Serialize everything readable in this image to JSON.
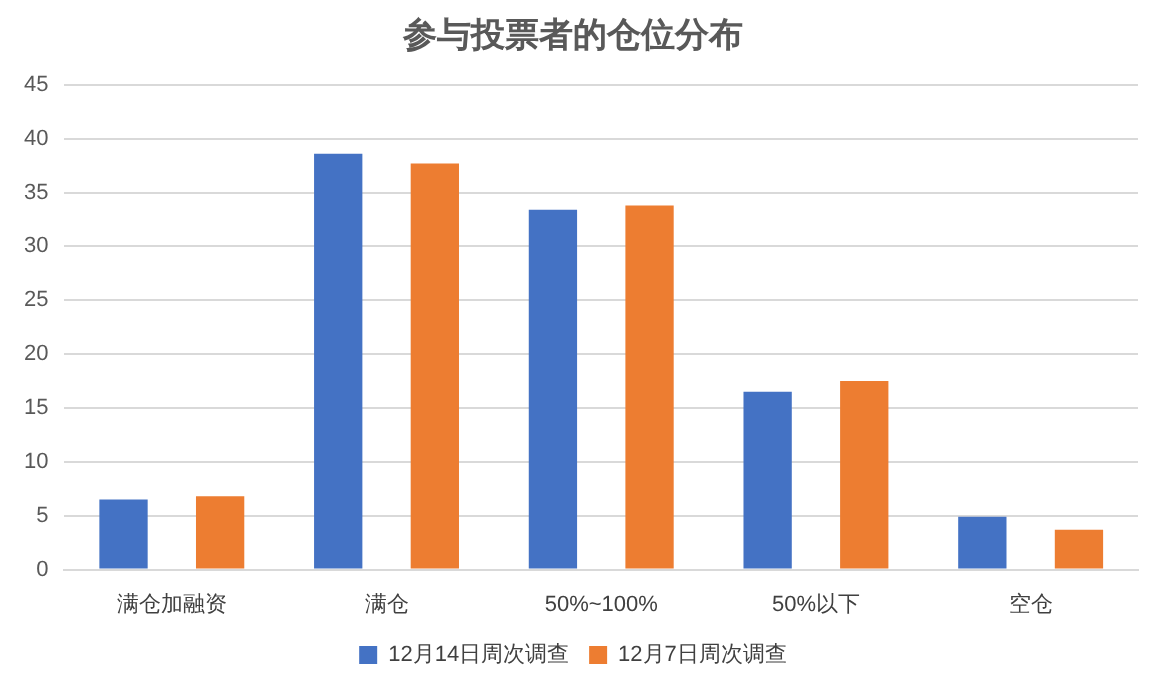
{
  "chart_data": {
    "type": "bar",
    "title": "参与投票者的仓位分布",
    "categories": [
      "满仓加融资",
      "满仓",
      "50%~100%",
      "50%以下",
      "空仓"
    ],
    "series": [
      {
        "name": "12月14日周次调查",
        "color": "#4472c4",
        "values": [
          6.5,
          38.6,
          33.4,
          16.5,
          4.9
        ]
      },
      {
        "name": "12月7日周次调查",
        "color": "#ed7d31",
        "values": [
          6.8,
          37.7,
          33.8,
          17.5,
          3.7
        ]
      }
    ],
    "ylim": [
      0,
      45
    ],
    "yticks": [
      0,
      5,
      10,
      15,
      20,
      25,
      30,
      35,
      40,
      45
    ],
    "grid": "y",
    "legend": "bottom"
  }
}
